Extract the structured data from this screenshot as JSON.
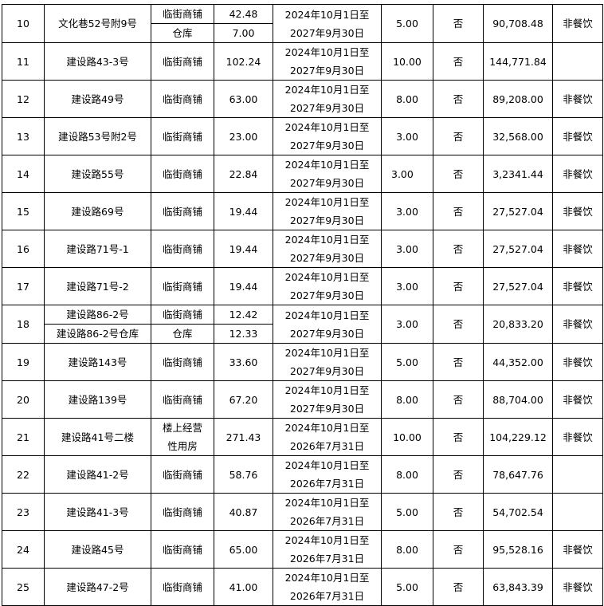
{
  "rows": [
    {
      "no": "10",
      "items": [
        {
          "address": "文化巷52号附9号",
          "type": "临街商铺",
          "area": "42.48"
        },
        {
          "address": "",
          "type": "仓库",
          "area": "7.00"
        }
      ],
      "split": true,
      "merge_address": true,
      "period": [
        "2024年10月1日至",
        "2027年9月30日"
      ],
      "years": "5.00",
      "flag": "否",
      "amount": "90,708.48",
      "note": "非餐饮"
    },
    {
      "no": "11",
      "items": [
        {
          "address": "建设路43-3号",
          "type": "临街商铺",
          "area": "102.24"
        }
      ],
      "period": [
        "2024年10月1日至",
        "2027年9月30日"
      ],
      "years": "10.00",
      "flag": "否",
      "amount": "144,771.84",
      "note": ""
    },
    {
      "no": "12",
      "items": [
        {
          "address": "建设路49号",
          "type": "临街商铺",
          "area": "63.00"
        }
      ],
      "period": [
        "2024年10月1日至",
        "2027年9月30日"
      ],
      "years": "8.00",
      "flag": "否",
      "amount": "89,208.00",
      "note": "非餐饮"
    },
    {
      "no": "13",
      "items": [
        {
          "address": "建设路53号附2号",
          "type": "临街商铺",
          "area": "23.00"
        }
      ],
      "period": [
        "2024年10月1日至",
        "2027年9月30日"
      ],
      "years": "3.00",
      "flag": "否",
      "amount": "32,568.00",
      "note": "非餐饮"
    },
    {
      "no": "14",
      "items": [
        {
          "address": "建设路55号",
          "type": "临街商铺",
          "area": "22.84"
        }
      ],
      "period": [
        "2024年10月1日至",
        "2027年9月30日"
      ],
      "years": "3.00",
      "flag": "否",
      "amount": "3,2341.44",
      "note": "非餐饮"
    },
    {
      "no": "15",
      "items": [
        {
          "address": "建设路69号",
          "type": "临街商铺",
          "area": "19.44"
        }
      ],
      "period": [
        "2024年10月1日至",
        "2027年9月30日"
      ],
      "years": "3.00",
      "flag": "否",
      "amount": "27,527.04",
      "note": "非餐饮"
    },
    {
      "no": "16",
      "items": [
        {
          "address": "建设路71号-1",
          "type": "临街商铺",
          "area": "19.44"
        }
      ],
      "period": [
        "2024年10月1日至",
        "2027年9月30日"
      ],
      "years": "3.00",
      "flag": "否",
      "amount": "27,527.04",
      "note": "非餐饮"
    },
    {
      "no": "17",
      "items": [
        {
          "address": "建设路71号-2",
          "type": "临街商铺",
          "area": "19.44"
        }
      ],
      "period": [
        "2024年10月1日至",
        "2027年9月30日"
      ],
      "years": "3.00",
      "flag": "否",
      "amount": "27,527.04",
      "note": "非餐饮"
    },
    {
      "no": "18",
      "items": [
        {
          "address": "建设路86-2号",
          "type": "临街商铺",
          "area": "12.42"
        },
        {
          "address": "建设路86-2号仓库",
          "type": "仓库",
          "area": "12.33"
        }
      ],
      "split": true,
      "period": [
        "2024年10月1日至",
        "2027年9月30日"
      ],
      "years": "3.00",
      "flag": "否",
      "amount": "20,833.20",
      "note": "非餐饮"
    },
    {
      "no": "19",
      "items": [
        {
          "address": "建设路143号",
          "type": "临街商铺",
          "area": "33.60"
        }
      ],
      "period": [
        "2024年10月1日至",
        "2027年9月30日"
      ],
      "years": "5.00",
      "flag": "否",
      "amount": "44,352.00",
      "note": "非餐饮"
    },
    {
      "no": "20",
      "items": [
        {
          "address": "建设路139号",
          "type": "临街商铺",
          "area": "67.20"
        }
      ],
      "period": [
        "2024年10月1日至",
        "2027年9月30日"
      ],
      "years": "8.00",
      "flag": "否",
      "amount": "88,704.00",
      "note": "非餐饮"
    },
    {
      "no": "21",
      "items": [
        {
          "address": "建设路41号二楼",
          "type": "楼上经营性用房",
          "type_lines": [
            "楼上经营",
            "性用房"
          ],
          "area": "271.43"
        }
      ],
      "period": [
        "2024年10月1日至",
        "2026年7月31日"
      ],
      "years": "10.00",
      "flag": "否",
      "amount": "104,229.12",
      "note": "非餐饮"
    },
    {
      "no": "22",
      "items": [
        {
          "address": "建设路41-2号",
          "type": "临街商铺",
          "area": "58.76"
        }
      ],
      "period": [
        "2024年10月1日至",
        "2026年7月31日"
      ],
      "years": "8.00",
      "flag": "否",
      "amount": "78,647.76",
      "note": ""
    },
    {
      "no": "23",
      "items": [
        {
          "address": "建设路41-3号",
          "type": "临街商铺",
          "area": "40.87"
        }
      ],
      "period": [
        "2024年10月1日至",
        "2026年7月31日"
      ],
      "years": "5.00",
      "flag": "否",
      "amount": "54,702.54",
      "note": ""
    },
    {
      "no": "24",
      "items": [
        {
          "address": "建设路45号",
          "type": "临街商铺",
          "area": "65.00"
        }
      ],
      "period": [
        "2024年10月1日至",
        "2026年7月31日"
      ],
      "years": "8.00",
      "flag": "否",
      "amount": "95,528.16",
      "note": "非餐饮"
    },
    {
      "no": "25",
      "items": [
        {
          "address": "建设路47-2号",
          "type": "临街商铺",
          "area": "41.00"
        }
      ],
      "period": [
        "2024年10月1日至",
        "2026年7月31日"
      ],
      "years": "5.00",
      "flag": "否",
      "amount": "63,843.39",
      "note": "非餐饮"
    }
  ]
}
